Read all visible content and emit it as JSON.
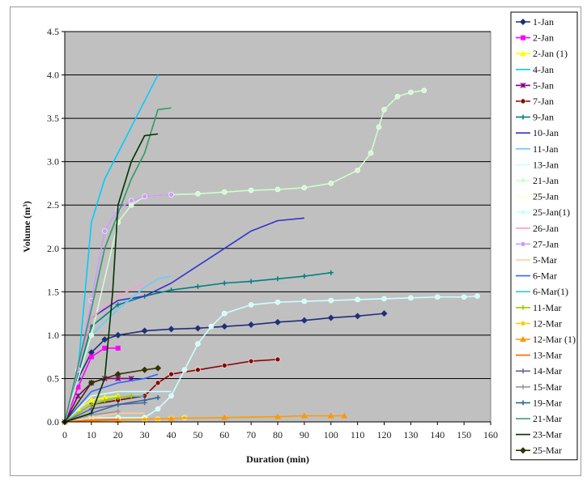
{
  "chart_data": {
    "type": "line",
    "xlabel": "Duration (min)",
    "ylabel": "Volume (m³)",
    "xlim": [
      0,
      160
    ],
    "ylim": [
      0,
      4.5
    ],
    "x_ticks": [
      "0",
      "10",
      "20",
      "30",
      "40",
      "50",
      "60",
      "70",
      "80",
      "90",
      "100",
      "110",
      "120",
      "130",
      "140",
      "150",
      "160"
    ],
    "y_ticks": [
      "0.0",
      "0.5",
      "1.0",
      "1.5",
      "2.0",
      "2.5",
      "3.0",
      "3.5",
      "4.0",
      "4.5"
    ],
    "plot_background": "#c0c0c0",
    "grid": true,
    "legend_position": "right",
    "series": [
      {
        "name": "1-Jan",
        "color": "#1f2f7a",
        "marker": "diamond",
        "x": [
          0,
          5,
          10,
          15,
          20,
          30,
          40,
          50,
          60,
          70,
          80,
          90,
          100,
          110,
          120
        ],
        "y": [
          0,
          0.5,
          0.8,
          0.95,
          1.0,
          1.05,
          1.07,
          1.08,
          1.1,
          1.12,
          1.15,
          1.17,
          1.2,
          1.22,
          1.25
        ]
      },
      {
        "name": "2-Jan",
        "color": "#ff00ff",
        "marker": "square",
        "x": [
          0,
          5,
          10,
          15,
          20
        ],
        "y": [
          0,
          0.4,
          0.75,
          0.85,
          0.85
        ]
      },
      {
        "name": "2-Jan (1)",
        "color": "#ffff00",
        "marker": "triangle",
        "x": [
          0,
          5,
          10,
          15,
          20
        ],
        "y": [
          0,
          0.15,
          0.25,
          0.28,
          0.3
        ]
      },
      {
        "name": "4-Jan",
        "color": "#00ccff",
        "marker": "none",
        "x": [
          0,
          5,
          10,
          15,
          20,
          25,
          30,
          35
        ],
        "y": [
          0,
          0.6,
          2.3,
          2.8,
          3.1,
          3.4,
          3.7,
          4.0
        ]
      },
      {
        "name": "5-Jan",
        "color": "#800080",
        "marker": "star",
        "x": [
          0,
          5,
          10,
          15,
          20,
          25
        ],
        "y": [
          0,
          0.3,
          0.45,
          0.5,
          0.5,
          0.5
        ]
      },
      {
        "name": "7-Jan",
        "color": "#8b0000",
        "marker": "circle",
        "x": [
          0,
          10,
          20,
          30,
          35,
          40,
          50,
          60,
          70,
          80
        ],
        "y": [
          0,
          0.2,
          0.25,
          0.3,
          0.45,
          0.55,
          0.6,
          0.65,
          0.7,
          0.72
        ]
      },
      {
        "name": "9-Jan",
        "color": "#008080",
        "marker": "plus",
        "x": [
          0,
          10,
          20,
          30,
          40,
          50,
          60,
          70,
          80,
          90,
          100
        ],
        "y": [
          0,
          1.1,
          1.35,
          1.45,
          1.52,
          1.56,
          1.6,
          1.62,
          1.65,
          1.68,
          1.72
        ]
      },
      {
        "name": "10-Jan",
        "color": "#3333cc",
        "marker": "none",
        "x": [
          0,
          10,
          20,
          30,
          40,
          50,
          60,
          70,
          80,
          90
        ],
        "y": [
          0,
          1.2,
          1.4,
          1.45,
          1.6,
          1.8,
          2.0,
          2.2,
          2.32,
          2.35
        ]
      },
      {
        "name": "11-Jan",
        "color": "#66ccff",
        "marker": "none",
        "x": [
          0,
          10,
          20,
          30,
          35,
          40
        ],
        "y": [
          0,
          1.0,
          1.3,
          1.55,
          1.65,
          1.68
        ]
      },
      {
        "name": "13-Jan",
        "color": "#ccffff",
        "marker": "none",
        "x": [
          0,
          10,
          20,
          30,
          40
        ],
        "y": [
          0,
          0.3,
          0.35,
          0.35,
          0.35
        ]
      },
      {
        "name": "21-Jan",
        "color": "#ccffcc",
        "marker": "circle",
        "x": [
          0,
          10,
          20,
          25,
          30,
          40,
          50,
          60,
          70,
          80,
          90,
          100,
          110,
          115,
          118,
          120,
          125,
          130,
          135
        ],
        "y": [
          0,
          1.0,
          2.3,
          2.5,
          2.6,
          2.62,
          2.63,
          2.65,
          2.67,
          2.68,
          2.7,
          2.75,
          2.9,
          3.1,
          3.4,
          3.6,
          3.75,
          3.8,
          3.82
        ]
      },
      {
        "name": "25-Jan",
        "color": "#ffffcc",
        "marker": "none",
        "x": [
          0,
          10,
          20,
          30
        ],
        "y": [
          0,
          0.1,
          0.2,
          0.25
        ]
      },
      {
        "name": "25-Jan(1)",
        "color": "#ccffff",
        "marker": "circle",
        "x": [
          0,
          10,
          20,
          30,
          35,
          40,
          45,
          50,
          55,
          60,
          70,
          80,
          90,
          100,
          110,
          120,
          130,
          140,
          150,
          155
        ],
        "y": [
          0,
          0.05,
          0.05,
          0.05,
          0.15,
          0.3,
          0.6,
          0.9,
          1.1,
          1.25,
          1.35,
          1.38,
          1.39,
          1.4,
          1.41,
          1.42,
          1.43,
          1.44,
          1.44,
          1.45
        ]
      },
      {
        "name": "26-Jan",
        "color": "#ff99cc",
        "marker": "none",
        "x": [
          0,
          10,
          20,
          30
        ],
        "y": [
          0,
          1.2,
          1.45,
          1.6
        ]
      },
      {
        "name": "27-Jan",
        "color": "#cc99ff",
        "marker": "circle",
        "x": [
          0,
          5,
          10,
          15,
          20,
          25,
          30,
          40
        ],
        "y": [
          0,
          0.6,
          1.4,
          2.2,
          2.45,
          2.55,
          2.6,
          2.62
        ]
      },
      {
        "name": "5-Mar",
        "color": "#ffcc99",
        "marker": "none",
        "x": [
          0,
          10,
          20,
          30
        ],
        "y": [
          0,
          0.05,
          0.1,
          0.1
        ]
      },
      {
        "name": "6-Mar",
        "color": "#3366ff",
        "marker": "none",
        "x": [
          0,
          10,
          20,
          30,
          35
        ],
        "y": [
          0,
          0.35,
          0.45,
          0.5,
          0.55
        ]
      },
      {
        "name": "6-Mar(1)",
        "color": "#33cccc",
        "marker": "none",
        "x": [
          0,
          10,
          20,
          30
        ],
        "y": [
          0,
          0.2,
          0.28,
          0.3
        ]
      },
      {
        "name": "11-Mar",
        "color": "#99cc00",
        "marker": "plus",
        "x": [
          0,
          10,
          15,
          20,
          25
        ],
        "y": [
          0,
          0.2,
          0.25,
          0.28,
          0.3
        ]
      },
      {
        "name": "12-Mar",
        "color": "#ffcc00",
        "marker": "circle",
        "x": [
          0,
          10,
          20,
          30,
          35,
          40,
          45
        ],
        "y": [
          0,
          0.02,
          0.02,
          0.03,
          0.03,
          0.04,
          0.05
        ]
      },
      {
        "name": "12-Mar (1)",
        "color": "#ff9900",
        "marker": "triangle",
        "x": [
          0,
          20,
          40,
          60,
          80,
          90,
          100,
          105
        ],
        "y": [
          0,
          0.02,
          0.04,
          0.05,
          0.06,
          0.07,
          0.07,
          0.07
        ]
      },
      {
        "name": "13-Mar",
        "color": "#ff6600",
        "marker": "none",
        "x": [
          0,
          10,
          20
        ],
        "y": [
          0,
          0.02,
          0.03
        ]
      },
      {
        "name": "14-Mar",
        "color": "#666699",
        "marker": "plus",
        "x": [
          0,
          10,
          20,
          30
        ],
        "y": [
          0,
          0.15,
          0.2,
          0.22
        ]
      },
      {
        "name": "15-Mar",
        "color": "#999999",
        "marker": "plus",
        "x": [
          0,
          10,
          20
        ],
        "y": [
          0,
          0.08,
          0.12
        ]
      },
      {
        "name": "19-Mar",
        "color": "#336699",
        "marker": "plus",
        "x": [
          0,
          10,
          20,
          30,
          35
        ],
        "y": [
          0,
          0.1,
          0.2,
          0.25,
          0.28
        ]
      },
      {
        "name": "21-Mar",
        "color": "#339966",
        "marker": "none",
        "x": [
          0,
          10,
          15,
          20,
          25,
          30,
          35,
          40
        ],
        "y": [
          0,
          1.3,
          2.0,
          2.4,
          2.8,
          3.1,
          3.6,
          3.62
        ]
      },
      {
        "name": "23-Mar",
        "color": "#003300",
        "marker": "none",
        "x": [
          0,
          10,
          15,
          18,
          20,
          25,
          30,
          35
        ],
        "y": [
          0,
          0.1,
          0.5,
          1.5,
          2.5,
          3.0,
          3.3,
          3.32
        ]
      },
      {
        "name": "25-Mar",
        "color": "#333300",
        "marker": "diamond",
        "x": [
          0,
          10,
          20,
          30,
          35
        ],
        "y": [
          0,
          0.45,
          0.55,
          0.6,
          0.62
        ]
      }
    ]
  }
}
